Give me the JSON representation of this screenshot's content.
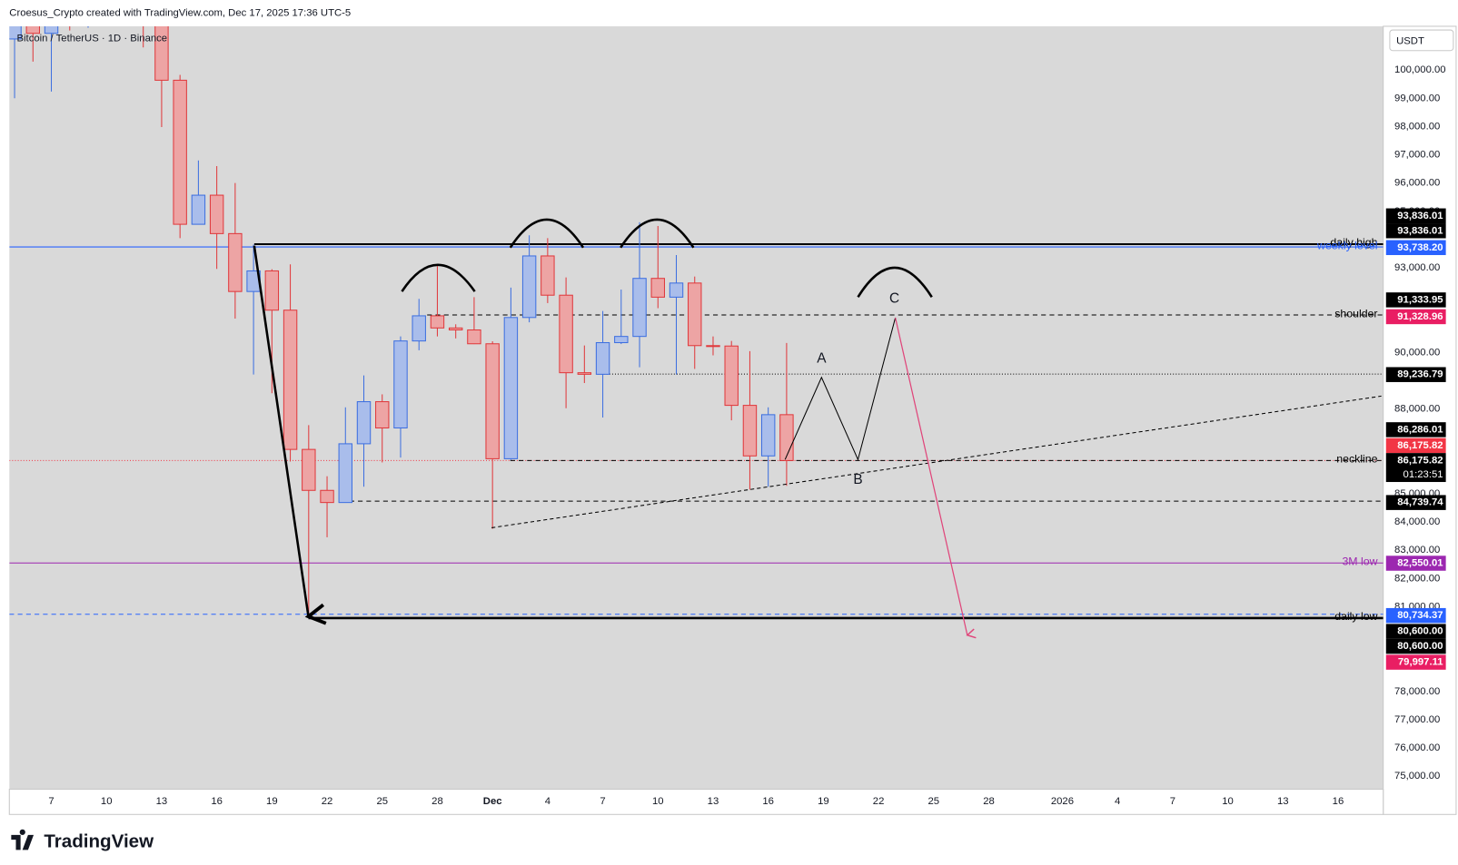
{
  "header": {
    "credit": "Croesus_Crypto created with TradingView.com, Dec 17, 2025 17:36 UTC-5",
    "logo": "TradingView"
  },
  "chart_data": {
    "type": "candlestick",
    "title": "Bitcoin / TetherUS · 1D · Binance",
    "currency": "USDT",
    "x": [
      "2025-11-05",
      "2025-11-06",
      "2025-11-07",
      "2025-11-08",
      "2025-11-09",
      "2025-11-10",
      "2025-11-11",
      "2025-11-12",
      "2025-11-13",
      "2025-11-14",
      "2025-11-15",
      "2025-11-16",
      "2025-11-17",
      "2025-11-18",
      "2025-11-19",
      "2025-11-20",
      "2025-11-21",
      "2025-11-22",
      "2025-11-23",
      "2025-11-24",
      "2025-11-25",
      "2025-11-26",
      "2025-11-27",
      "2025-11-28",
      "2025-11-29",
      "2025-11-30",
      "2025-12-01",
      "2025-12-02",
      "2025-12-03",
      "2025-12-04",
      "2025-12-05",
      "2025-12-06",
      "2025-12-07",
      "2025-12-08",
      "2025-12-09",
      "2025-12-10",
      "2025-12-11",
      "2025-12-12",
      "2025-12-13",
      "2025-12-14",
      "2025-12-15",
      "2025-12-16",
      "2025-12-17"
    ],
    "open": [
      101100,
      103900,
      101300,
      103300,
      102300,
      104700,
      106000,
      103000,
      101600,
      99640,
      94540,
      95570,
      94210,
      92160,
      92890,
      91500,
      86570,
      85120,
      84690,
      86770,
      88260,
      87330,
      90410,
      91300,
      90870,
      90800,
      90310,
      86240,
      91240,
      93420,
      92030,
      89285,
      89230,
      90350,
      90570,
      92625,
      91960,
      92460,
      90245,
      90230,
      88130,
      86340,
      87800
    ],
    "high": [
      104500,
      104200,
      104000,
      103700,
      105000,
      106600,
      107400,
      105300,
      104000,
      99830,
      96800,
      96600,
      96000,
      93820,
      92950,
      93120,
      87430,
      85620,
      88060,
      89190,
      88520,
      90570,
      91900,
      93060,
      91000,
      91960,
      90400,
      92300,
      94150,
      94050,
      92660,
      90250,
      91470,
      92230,
      94610,
      94480,
      93450,
      92690,
      90570,
      90410,
      90050,
      88060,
      90340
    ],
    "low": [
      99000,
      100300,
      99240,
      101400,
      101500,
      104300,
      102700,
      100800,
      97980,
      94050,
      94540,
      92960,
      91200,
      89220,
      88560,
      86140,
      80600,
      83460,
      84690,
      85250,
      86110,
      86280,
      90080,
      90570,
      90500,
      90300,
      83760,
      86200,
      91070,
      91750,
      88030,
      88920,
      87700,
      90300,
      89480,
      91570,
      89220,
      89420,
      89900,
      87600,
      85150,
      85250,
      85280
    ],
    "close": [
      103900,
      101300,
      103300,
      102300,
      104700,
      106000,
      103000,
      101600,
      99640,
      94540,
      95570,
      94210,
      92160,
      92890,
      91500,
      86570,
      85120,
      84690,
      86770,
      88260,
      87330,
      90410,
      91300,
      90870,
      90800,
      90310,
      86240,
      91240,
      93420,
      92030,
      89285,
      89230,
      90350,
      90570,
      92625,
      91960,
      92460,
      90245,
      90230,
      88130,
      86340,
      87800,
      86175.82
    ],
    "up_color": "#3d6fe0",
    "up_fill": "#a9bdeb",
    "down_color": "#e0393c",
    "down_fill": "#eda4a4",
    "ylim": [
      74540,
      101550
    ],
    "yticks": [
      {
        "value": 100000,
        "label": "100,000.00"
      },
      {
        "value": 99000,
        "label": "99,000.00"
      },
      {
        "value": 98000,
        "label": "98,000.00"
      },
      {
        "value": 97000,
        "label": "97,000.00"
      },
      {
        "value": 96000,
        "label": "96,000.00"
      },
      {
        "value": 95000,
        "label": "95,000.00"
      },
      {
        "value": 93000,
        "label": "93,000.00"
      },
      {
        "value": 90000,
        "label": "90,000.00"
      },
      {
        "value": 88000,
        "label": "88,000.00"
      },
      {
        "value": 85000,
        "label": "85,000.00"
      },
      {
        "value": 84000,
        "label": "84,000.00"
      },
      {
        "value": 83000,
        "label": "83,000.00"
      },
      {
        "value": 82000,
        "label": "82,000.00"
      },
      {
        "value": 81000,
        "label": "81,000.00"
      },
      {
        "value": 78000,
        "label": "78,000.00"
      },
      {
        "value": 77000,
        "label": "77,000.00"
      },
      {
        "value": 76000,
        "label": "76,000.00"
      },
      {
        "value": 75000,
        "label": "75,000.00"
      }
    ],
    "xlim": [
      "2025-11-05",
      "2026-01-18"
    ],
    "xticks": [
      {
        "value": "2025-11-07",
        "label": "7"
      },
      {
        "value": "2025-11-10",
        "label": "10"
      },
      {
        "value": "2025-11-13",
        "label": "13"
      },
      {
        "value": "2025-11-16",
        "label": "16"
      },
      {
        "value": "2025-11-19",
        "label": "19"
      },
      {
        "value": "2025-11-22",
        "label": "22"
      },
      {
        "value": "2025-11-25",
        "label": "25"
      },
      {
        "value": "2025-11-28",
        "label": "28"
      },
      {
        "value": "2025-12-01",
        "label": "Dec"
      },
      {
        "value": "2025-12-04",
        "label": "4"
      },
      {
        "value": "2025-12-07",
        "label": "7"
      },
      {
        "value": "2025-12-10",
        "label": "10"
      },
      {
        "value": "2025-12-13",
        "label": "13"
      },
      {
        "value": "2025-12-16",
        "label": "16"
      },
      {
        "value": "2025-12-19",
        "label": "19"
      },
      {
        "value": "2025-12-22",
        "label": "22"
      },
      {
        "value": "2025-12-25",
        "label": "25"
      },
      {
        "value": "2025-12-28",
        "label": "28"
      },
      {
        "value": "2026-01-01",
        "label": "2026"
      },
      {
        "value": "2026-01-04",
        "label": "4"
      },
      {
        "value": "2026-01-07",
        "label": "7"
      },
      {
        "value": "2026-01-10",
        "label": "10"
      },
      {
        "value": "2026-01-13",
        "label": "13"
      },
      {
        "value": "2026-01-16",
        "label": "16"
      }
    ],
    "grid": false,
    "last_price": {
      "value": 86175.82,
      "color": "#f23645"
    },
    "levels": [
      {
        "label": "daily high",
        "value": 93836.01,
        "color": "#000000",
        "style": "solid"
      },
      {
        "label": "weekly level",
        "value": 93738.2,
        "color": "#2962ff",
        "style": "solid"
      },
      {
        "label": "shoulder",
        "value": 91328.96,
        "color": "#000000",
        "style": "dashed"
      },
      {
        "value": 89236.79,
        "color": "#000000",
        "style": "dotted"
      },
      {
        "label": "neckline",
        "value": 86175.82,
        "color": "#000000",
        "style": "dashed"
      },
      {
        "value": 84739.74,
        "color": "#000000",
        "style": "dashed"
      },
      {
        "label": "3M low",
        "value": 82550.01,
        "color": "#9c27b0",
        "style": "solid"
      },
      {
        "label": "daily low",
        "value": 80600,
        "color": "#000000",
        "style": "solid"
      },
      {
        "value": 80734.37,
        "color": "#2962ff",
        "style": "dashed"
      }
    ],
    "price_labels": [
      {
        "text": "93,836.01",
        "bg": "#000000"
      },
      {
        "text": "93,836.01",
        "bg": "#000000"
      },
      {
        "text": "93,738.20",
        "bg": "#2962ff"
      },
      {
        "text": "91,333.95",
        "bg": "#000000"
      },
      {
        "text": "91,328.96",
        "bg": "#e91e63"
      },
      {
        "text": "89,236.79",
        "bg": "#000000"
      },
      {
        "text": "86,286.01",
        "bg": "#000000"
      },
      {
        "text": "86,175.82",
        "bg": "#f23645"
      },
      {
        "text": "86,175.82",
        "bg": "#000000",
        "countdown": "01:23:51"
      },
      {
        "text": "84,739.74",
        "bg": "#000000"
      },
      {
        "text": "82,550.01",
        "bg": "#9c27b0"
      },
      {
        "text": "80,734.37",
        "bg": "#2962ff"
      },
      {
        "text": "80,600.00",
        "bg": "#000000"
      },
      {
        "text": "80,600.00",
        "bg": "#000000"
      },
      {
        "text": "79,997.11",
        "bg": "#e91e63"
      }
    ],
    "annotations": {
      "a": "A",
      "b": "B",
      "c": "C"
    }
  }
}
